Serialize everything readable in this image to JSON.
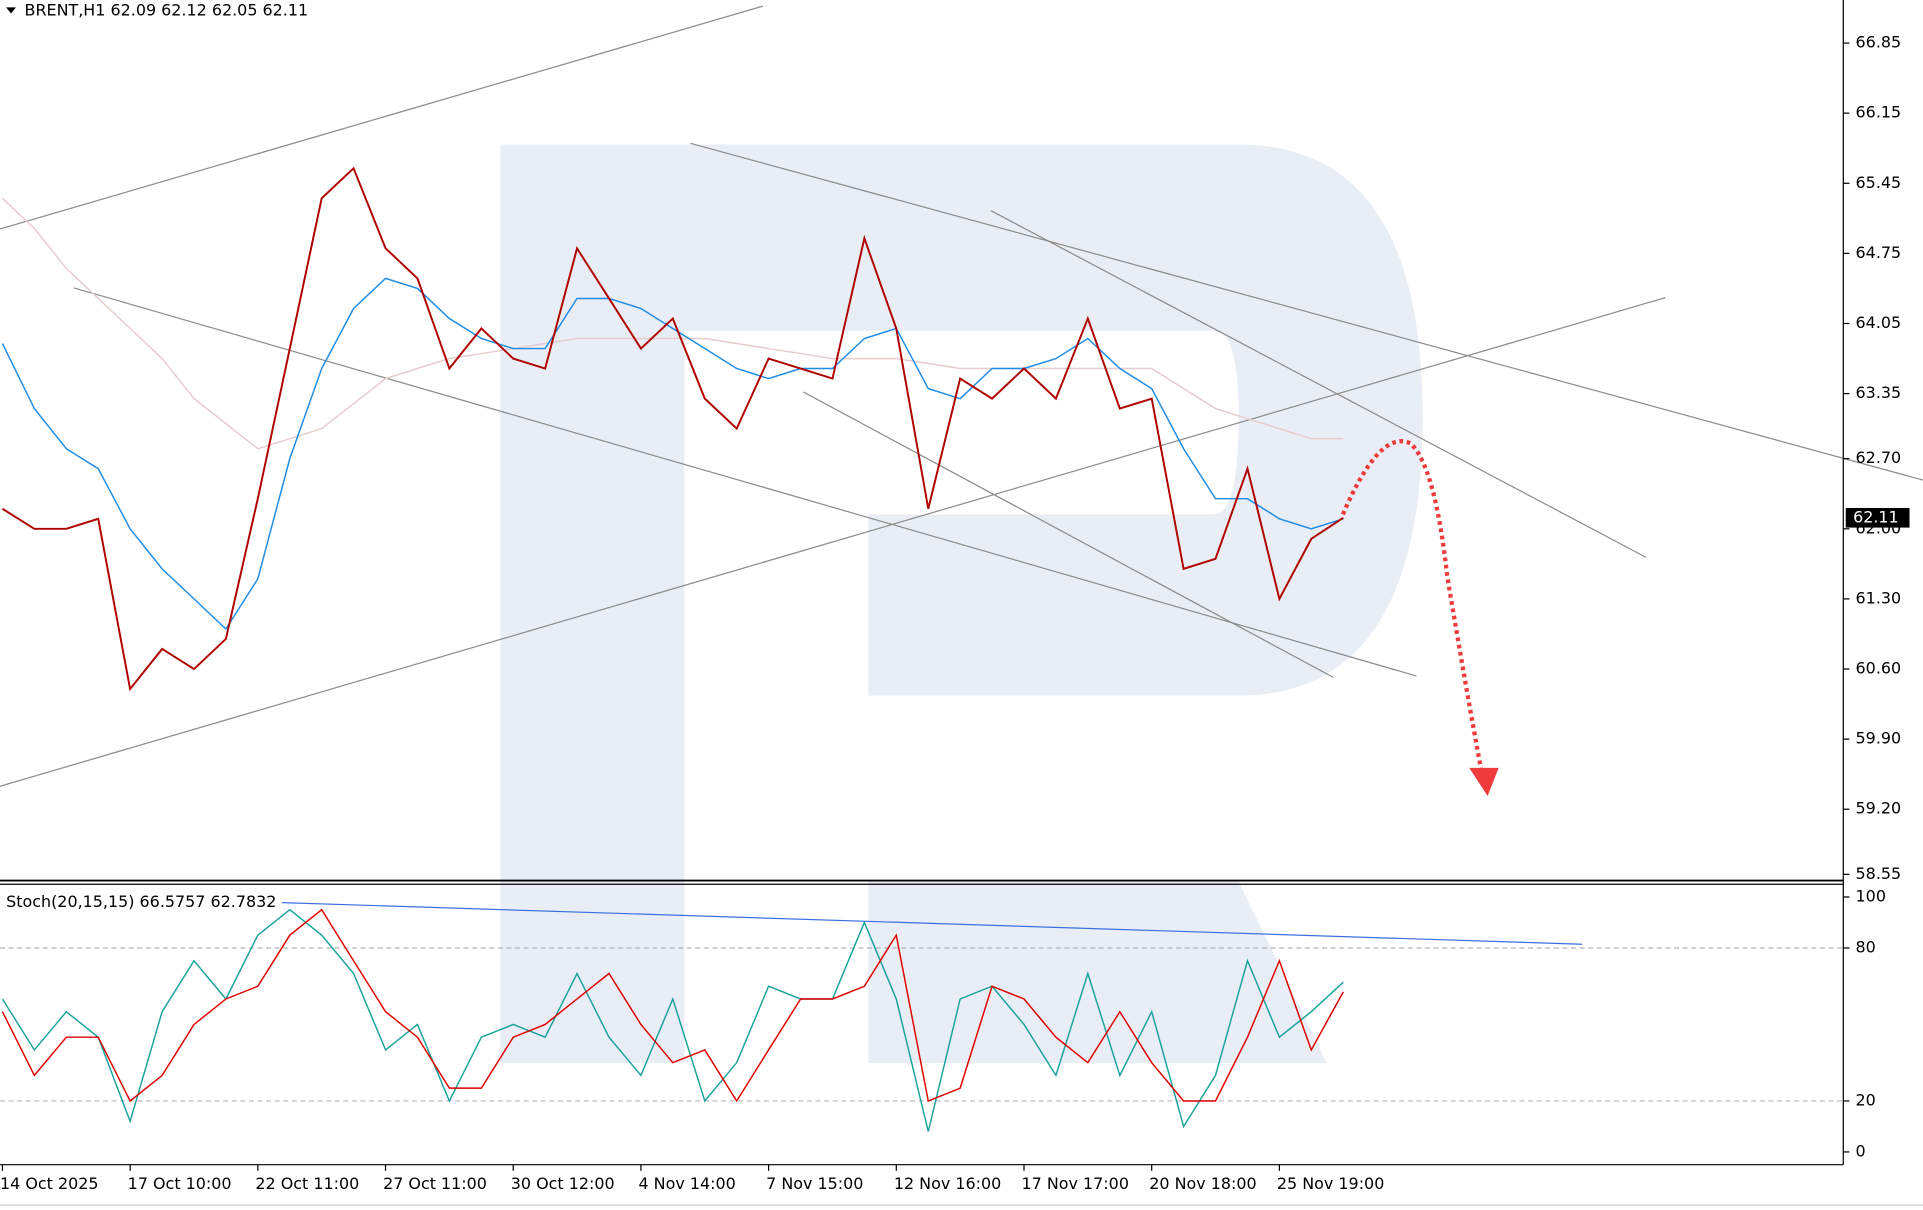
{
  "chart_data": [
    {
      "type": "line",
      "title": "BRENT,H1  62.09 62.12 62.05 62.11",
      "categories": [
        "14 Oct 2025",
        null,
        null,
        null,
        "17 Oct 10:00",
        null,
        null,
        null,
        "22 Oct 11:00",
        null,
        null,
        null,
        "27 Oct 11:00",
        null,
        null,
        null,
        "30 Oct 12:00",
        null,
        null,
        null,
        "4 Nov 14:00",
        null,
        null,
        null,
        "7 Nov 15:00",
        null,
        null,
        null,
        "12 Nov 16:00",
        null,
        null,
        null,
        "17 Nov 17:00",
        null,
        null,
        null,
        "20 Nov 18:00",
        null,
        null,
        null,
        "25 Nov 19:00",
        null,
        null,
        null,
        null,
        null,
        null,
        null,
        null,
        null,
        null,
        null,
        null,
        null,
        null,
        null,
        null,
        null
      ],
      "series": [
        {
          "color": "#e6cccc",
          "values": [
            65.3,
            65.0,
            64.6,
            64.3,
            64.0,
            63.7,
            63.3,
            63.05,
            62.8,
            62.9,
            63.0,
            63.25,
            63.5,
            63.6,
            63.7,
            63.75,
            63.8,
            63.85,
            63.9,
            63.9,
            63.9,
            63.9,
            63.9,
            63.85,
            63.8,
            63.75,
            63.7,
            63.7,
            63.7,
            63.65,
            63.6,
            63.6,
            63.6,
            63.6,
            63.6,
            63.6,
            63.6,
            63.4,
            63.2,
            63.1,
            63.0,
            62.9,
            62.9,
            null,
            null,
            null,
            null,
            null,
            null,
            null,
            null,
            null,
            null,
            null,
            null,
            null,
            null,
            null
          ]
        },
        {
          "color": "#1e8ce6",
          "values": [
            63.85,
            63.2,
            62.8,
            62.6,
            62.0,
            61.6,
            61.3,
            61.0,
            61.5,
            62.7,
            63.6,
            64.2,
            64.5,
            64.4,
            64.1,
            63.9,
            63.8,
            63.8,
            64.3,
            64.3,
            64.2,
            64.0,
            63.8,
            63.6,
            63.5,
            63.6,
            63.6,
            63.9,
            64.0,
            63.4,
            63.3,
            63.6,
            63.6,
            63.7,
            63.9,
            63.6,
            63.4,
            62.8,
            62.3,
            62.3,
            62.1,
            62.0,
            62.1,
            null,
            null,
            null,
            null,
            null,
            null,
            null,
            null,
            null,
            null,
            null,
            null,
            null,
            null,
            null
          ]
        },
        {
          "color": "#b00000",
          "values": [
            62.2,
            62.0,
            62.0,
            62.1,
            60.4,
            60.8,
            60.6,
            60.9,
            62.3,
            63.8,
            65.3,
            65.6,
            64.8,
            64.5,
            63.6,
            64.0,
            63.7,
            63.6,
            64.8,
            64.3,
            63.8,
            64.1,
            63.3,
            63.0,
            63.7,
            63.6,
            63.5,
            64.9,
            64.0,
            62.2,
            63.5,
            63.3,
            63.6,
            63.3,
            64.1,
            63.2,
            63.3,
            61.6,
            61.7,
            62.6,
            61.3,
            61.9,
            62.11,
            null,
            null,
            null,
            null,
            null,
            null,
            null,
            null,
            null,
            null,
            null,
            null,
            null,
            null,
            null
          ]
        }
      ],
      "last_value": 62.11,
      "ylim": [
        58.5,
        67.28
      ],
      "yticks": [
        66.85,
        66.15,
        65.45,
        64.75,
        64.05,
        63.35,
        {
          "value": 62.7,
          "label": "62.70"
        },
        {
          "value": 62.0,
          "label": "62.00"
        },
        {
          "value": 61.3,
          "label": "61.30"
        },
        {
          "value": 60.6,
          "label": "60.60"
        },
        {
          "value": 59.9,
          "label": "59.90"
        },
        {
          "value": 59.2,
          "label": "59.20"
        },
        58.55
      ],
      "grid": false
    },
    {
      "type": "line",
      "title": "Stoch(20,15,15) 66.5757 62.7832",
      "series": [
        {
          "color": "#1aa39a",
          "values": [
            60,
            40,
            55,
            45,
            12,
            55,
            75,
            60,
            85,
            95,
            85,
            70,
            40,
            50,
            20,
            45,
            50,
            45,
            70,
            45,
            30,
            60,
            20,
            35,
            65,
            60,
            60,
            90,
            60,
            8,
            60,
            65,
            50,
            30,
            70,
            30,
            55,
            10,
            30,
            75,
            45,
            55,
            66.5757,
            null,
            null,
            null,
            null,
            null,
            null,
            null,
            null,
            null,
            null,
            null,
            null,
            null,
            null,
            null
          ]
        },
        {
          "color": "#e00000",
          "values": [
            55,
            30,
            45,
            45,
            20,
            30,
            50,
            60,
            65,
            85,
            95,
            75,
            55,
            45,
            25,
            25,
            45,
            50,
            60,
            70,
            50,
            35,
            40,
            20,
            40,
            60,
            60,
            65,
            85,
            20,
            25,
            65,
            60,
            45,
            35,
            55,
            35,
            20,
            20,
            45,
            75,
            40,
            62.7832,
            null,
            null,
            null,
            null,
            null,
            null,
            null,
            null,
            null,
            null,
            null,
            null,
            null,
            null,
            null
          ]
        }
      ],
      "levels": [
        20,
        80
      ],
      "ylim": [
        -5,
        105
      ],
      "yticks": [
        0,
        20,
        80,
        100
      ],
      "grid": false
    }
  ]
}
